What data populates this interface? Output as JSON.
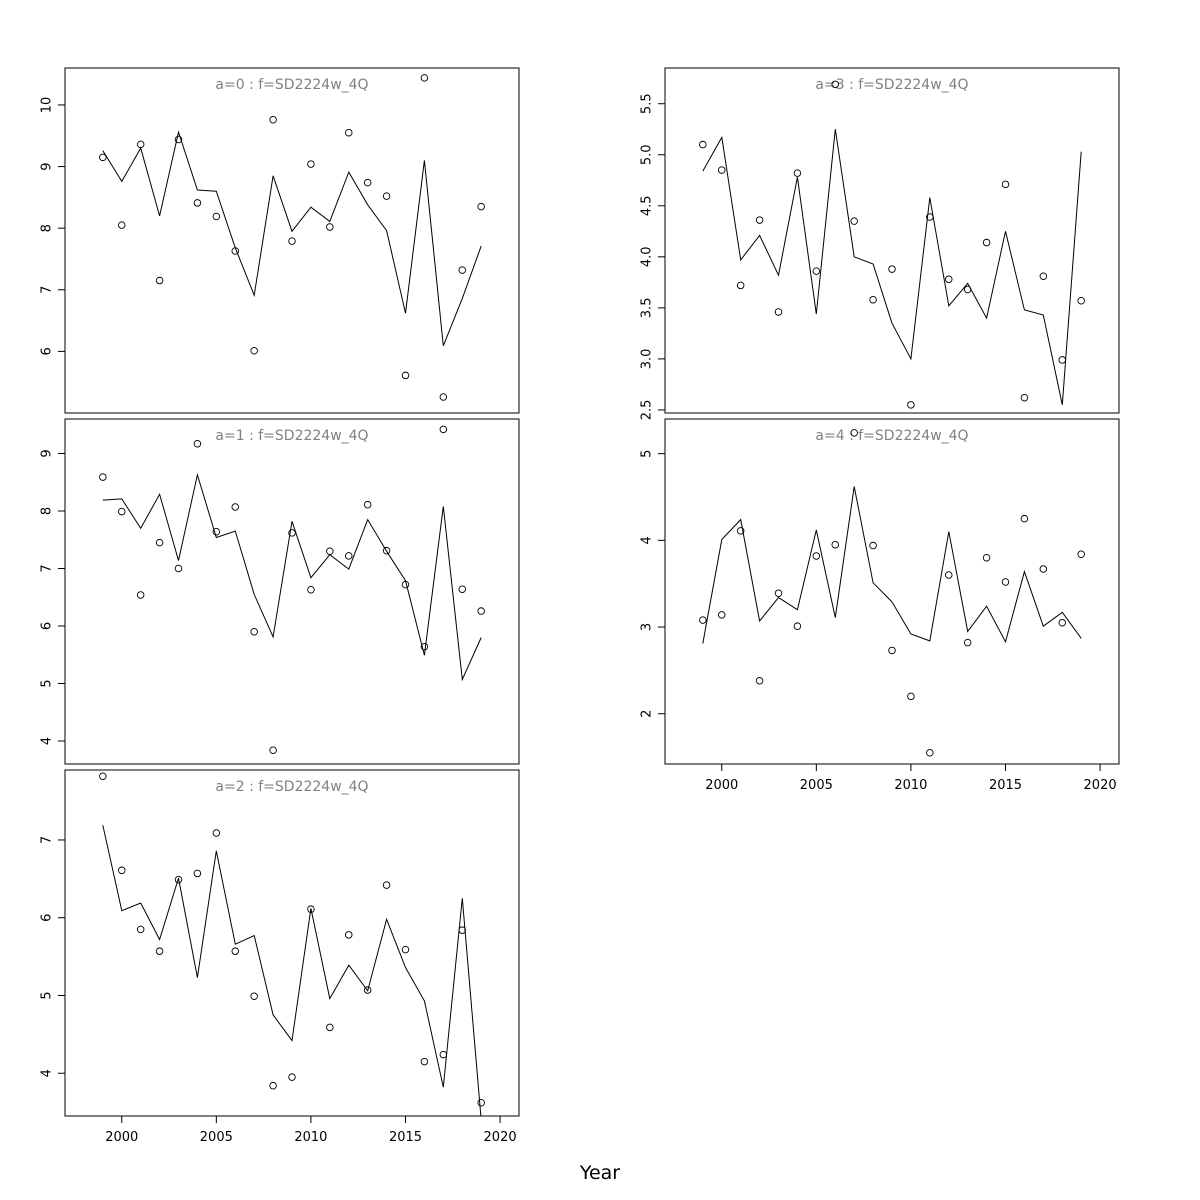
{
  "figure": {
    "xlabel": "Year"
  },
  "chart_data": [
    {
      "type": "line",
      "title": "a=0  :  f=SD2224w_4Q",
      "xlim": [
        1997,
        2021
      ],
      "ylim": [
        5,
        10.6
      ],
      "yticks": [
        6,
        7,
        8,
        9,
        10
      ],
      "xticks": [],
      "grid": false,
      "x": [
        1999,
        2000,
        2001,
        2002,
        2003,
        2004,
        2005,
        2006,
        2007,
        2008,
        2009,
        2010,
        2011,
        2012,
        2013,
        2014,
        2015,
        2016,
        2017,
        2018,
        2019
      ],
      "series": [
        {
          "kind": "points",
          "values": [
            9.15,
            8.05,
            9.36,
            7.15,
            9.44,
            8.41,
            8.19,
            7.63,
            6.01,
            9.76,
            7.79,
            9.04,
            8.02,
            9.55,
            8.74,
            8.52,
            5.61,
            10.44,
            5.26,
            7.32,
            8.35
          ]
        },
        {
          "kind": "line",
          "values": [
            9.26,
            8.76,
            9.3,
            8.2,
            9.56,
            8.62,
            8.6,
            7.68,
            6.91,
            8.85,
            7.95,
            8.34,
            8.11,
            8.91,
            8.38,
            7.96,
            6.62,
            9.1,
            6.09,
            6.86,
            7.71
          ]
        }
      ]
    },
    {
      "type": "line",
      "title": "a=1  :  f=SD2224w_4Q",
      "xlim": [
        1997,
        2021
      ],
      "ylim": [
        3.6,
        9.6
      ],
      "yticks": [
        4,
        5,
        6,
        7,
        8,
        9
      ],
      "xticks": [],
      "grid": false,
      "x": [
        1999,
        2000,
        2001,
        2002,
        2003,
        2004,
        2005,
        2006,
        2007,
        2008,
        2009,
        2010,
        2011,
        2012,
        2013,
        2014,
        2015,
        2016,
        2017,
        2018,
        2019
      ],
      "series": [
        {
          "kind": "points",
          "values": [
            8.59,
            7.99,
            6.54,
            7.45,
            7.0,
            9.17,
            7.64,
            8.07,
            5.9,
            3.84,
            7.62,
            6.63,
            7.3,
            7.22,
            8.11,
            7.31,
            6.72,
            5.64,
            9.42,
            6.64,
            6.26
          ]
        },
        {
          "kind": "line",
          "values": [
            8.19,
            8.21,
            7.7,
            8.29,
            7.14,
            8.63,
            7.54,
            7.65,
            6.55,
            5.81,
            7.82,
            6.84,
            7.24,
            6.99,
            7.85,
            7.3,
            6.79,
            5.49,
            8.08,
            5.07,
            5.8
          ]
        }
      ]
    },
    {
      "type": "line",
      "title": "a=2  :  f=SD2224w_4Q",
      "xlim": [
        1997,
        2021
      ],
      "ylim": [
        3.45,
        7.9
      ],
      "yticks": [
        4,
        5,
        6,
        7
      ],
      "xticks": [
        2000,
        2005,
        2010,
        2015,
        2020
      ],
      "grid": false,
      "x": [
        1999,
        2000,
        2001,
        2002,
        2003,
        2004,
        2005,
        2006,
        2007,
        2008,
        2009,
        2010,
        2011,
        2012,
        2013,
        2014,
        2015,
        2016,
        2017,
        2018,
        2019
      ],
      "series": [
        {
          "kind": "points",
          "values": [
            7.82,
            6.61,
            5.85,
            5.57,
            6.49,
            6.57,
            7.09,
            5.57,
            4.99,
            3.84,
            3.95,
            6.11,
            4.59,
            5.78,
            5.07,
            6.42,
            5.59,
            4.15,
            4.24,
            5.84,
            3.62
          ]
        },
        {
          "kind": "line",
          "values": [
            7.19,
            6.09,
            6.19,
            5.72,
            6.51,
            5.23,
            6.86,
            5.66,
            5.77,
            4.75,
            4.42,
            6.12,
            4.96,
            5.39,
            5.06,
            5.98,
            5.36,
            4.93,
            3.82,
            6.25,
            3.4
          ]
        }
      ]
    },
    {
      "type": "line",
      "title": "a=3  :  f=SD2224w_4Q",
      "xlim": [
        1997,
        2021
      ],
      "ylim": [
        2.47,
        5.85
      ],
      "yticks": [
        2.5,
        3.0,
        3.5,
        4.0,
        4.5,
        5.0,
        5.5
      ],
      "ytick_labels": [
        "2.5",
        "3.0",
        "3.5",
        "4.0",
        "4.5",
        "5.0",
        "5.5"
      ],
      "xticks": [],
      "grid": false,
      "x": [
        1999,
        2000,
        2001,
        2002,
        2003,
        2004,
        2005,
        2006,
        2007,
        2008,
        2009,
        2010,
        2011,
        2012,
        2013,
        2014,
        2015,
        2016,
        2017,
        2018,
        2019
      ],
      "series": [
        {
          "kind": "points",
          "values": [
            5.1,
            4.85,
            3.72,
            4.36,
            3.46,
            4.82,
            3.86,
            5.69,
            4.35,
            3.58,
            3.88,
            2.55,
            4.39,
            3.78,
            3.68,
            4.14,
            4.71,
            2.62,
            3.81,
            2.99,
            3.57
          ]
        },
        {
          "kind": "line",
          "values": [
            4.84,
            5.17,
            3.97,
            4.21,
            3.82,
            4.78,
            3.44,
            5.25,
            4.0,
            3.93,
            3.35,
            3.0,
            4.58,
            3.52,
            3.74,
            3.4,
            4.25,
            3.48,
            3.43,
            2.55,
            5.03
          ]
        }
      ]
    },
    {
      "type": "line",
      "title": "a=4  :  f=SD2224w_4Q",
      "xlim": [
        1997,
        2021
      ],
      "ylim": [
        1.42,
        5.4
      ],
      "yticks": [
        2,
        3,
        4,
        5
      ],
      "xticks": [
        2000,
        2005,
        2010,
        2015,
        2020
      ],
      "grid": false,
      "x": [
        1999,
        2000,
        2001,
        2002,
        2003,
        2004,
        2005,
        2006,
        2007,
        2008,
        2009,
        2010,
        2011,
        2012,
        2013,
        2014,
        2015,
        2016,
        2017,
        2018,
        2019
      ],
      "series": [
        {
          "kind": "points",
          "values": [
            3.08,
            3.14,
            4.11,
            2.38,
            3.39,
            3.01,
            3.82,
            3.95,
            5.24,
            3.94,
            2.73,
            2.2,
            1.55,
            3.6,
            2.82,
            3.8,
            3.52,
            4.25,
            3.67,
            3.05,
            3.84
          ]
        },
        {
          "kind": "line",
          "values": [
            2.81,
            4.01,
            4.24,
            3.07,
            3.34,
            3.2,
            4.12,
            3.11,
            4.62,
            3.51,
            3.29,
            2.92,
            2.84,
            4.1,
            2.95,
            3.24,
            2.83,
            3.64,
            3.01,
            3.17,
            2.87
          ]
        }
      ]
    }
  ]
}
